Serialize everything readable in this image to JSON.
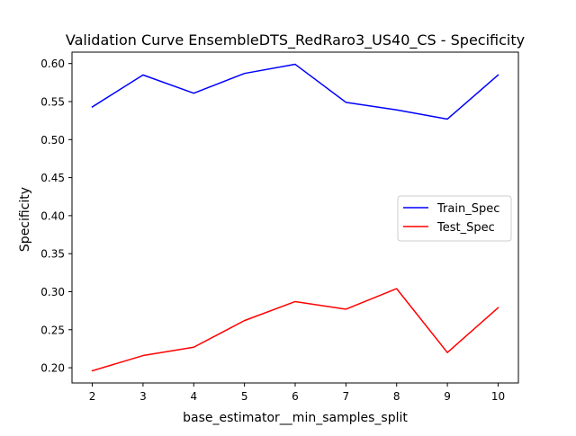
{
  "chart_data": {
    "type": "line",
    "title": "Validation Curve EnsembleDTS_RedRaro3_US40_CS - Specificity",
    "xlabel": "base_estimator__min_samples_split",
    "ylabel": "Specificity",
    "x": [
      2,
      3,
      4,
      5,
      6,
      7,
      8,
      9,
      10
    ],
    "xticks": [
      "2",
      "3",
      "4",
      "5",
      "6",
      "7",
      "8",
      "9",
      "10"
    ],
    "yticks": [
      "0.20",
      "0.25",
      "0.30",
      "0.35",
      "0.40",
      "0.45",
      "0.50",
      "0.55",
      "0.60"
    ],
    "xlim": [
      1.6,
      10.4
    ],
    "ylim": [
      0.18,
      0.615
    ],
    "grid": false,
    "legend_position": "center-right",
    "series": [
      {
        "name": "Train_Spec",
        "color": "#0000ff",
        "values": [
          0.543,
          0.585,
          0.561,
          0.587,
          0.599,
          0.549,
          0.539,
          0.527,
          0.585
        ]
      },
      {
        "name": "Test_Spec",
        "color": "#ff0000",
        "values": [
          0.196,
          0.216,
          0.227,
          0.262,
          0.287,
          0.277,
          0.304,
          0.22,
          0.279
        ]
      }
    ]
  }
}
